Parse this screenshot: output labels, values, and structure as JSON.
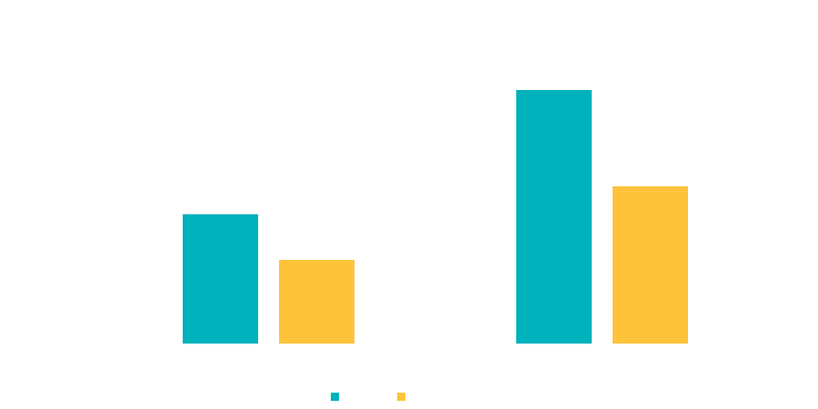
{
  "chart_data": {
    "type": "bar",
    "categories": [
      "",
      ""
    ],
    "series": [
      {
        "values": [
          51,
          100
        ]
      },
      {
        "values": [
          33,
          62
        ]
      }
    ],
    "ylim": [
      0,
      100
    ],
    "grid": false,
    "legend_position": "bottom-center",
    "colors": [
      "#00B2BB",
      "#FEC33A"
    ]
  }
}
